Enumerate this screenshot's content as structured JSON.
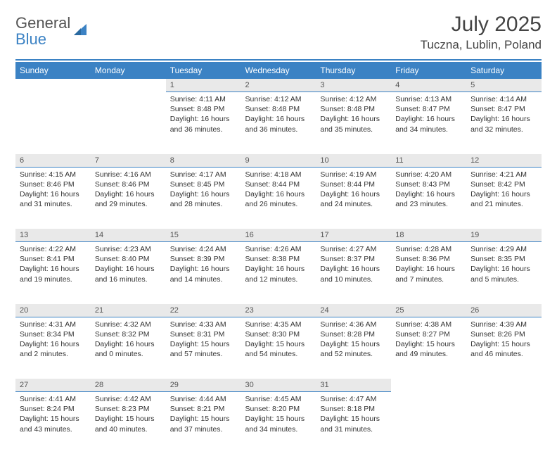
{
  "brand": {
    "part1": "General",
    "part2": "Blue"
  },
  "title": "July 2025",
  "location": "Tuczna, Lublin, Poland",
  "colors": {
    "accent": "#3b82c4",
    "dayHeaderBg": "#e9e9e9",
    "text": "#333333"
  },
  "dayNames": [
    "Sunday",
    "Monday",
    "Tuesday",
    "Wednesday",
    "Thursday",
    "Friday",
    "Saturday"
  ],
  "startOffset": 2,
  "days": [
    {
      "n": 1,
      "sr": "4:11 AM",
      "ss": "8:48 PM",
      "dl": "16 hours and 36 minutes."
    },
    {
      "n": 2,
      "sr": "4:12 AM",
      "ss": "8:48 PM",
      "dl": "16 hours and 36 minutes."
    },
    {
      "n": 3,
      "sr": "4:12 AM",
      "ss": "8:48 PM",
      "dl": "16 hours and 35 minutes."
    },
    {
      "n": 4,
      "sr": "4:13 AM",
      "ss": "8:47 PM",
      "dl": "16 hours and 34 minutes."
    },
    {
      "n": 5,
      "sr": "4:14 AM",
      "ss": "8:47 PM",
      "dl": "16 hours and 32 minutes."
    },
    {
      "n": 6,
      "sr": "4:15 AM",
      "ss": "8:46 PM",
      "dl": "16 hours and 31 minutes."
    },
    {
      "n": 7,
      "sr": "4:16 AM",
      "ss": "8:46 PM",
      "dl": "16 hours and 29 minutes."
    },
    {
      "n": 8,
      "sr": "4:17 AM",
      "ss": "8:45 PM",
      "dl": "16 hours and 28 minutes."
    },
    {
      "n": 9,
      "sr": "4:18 AM",
      "ss": "8:44 PM",
      "dl": "16 hours and 26 minutes."
    },
    {
      "n": 10,
      "sr": "4:19 AM",
      "ss": "8:44 PM",
      "dl": "16 hours and 24 minutes."
    },
    {
      "n": 11,
      "sr": "4:20 AM",
      "ss": "8:43 PM",
      "dl": "16 hours and 23 minutes."
    },
    {
      "n": 12,
      "sr": "4:21 AM",
      "ss": "8:42 PM",
      "dl": "16 hours and 21 minutes."
    },
    {
      "n": 13,
      "sr": "4:22 AM",
      "ss": "8:41 PM",
      "dl": "16 hours and 19 minutes."
    },
    {
      "n": 14,
      "sr": "4:23 AM",
      "ss": "8:40 PM",
      "dl": "16 hours and 16 minutes."
    },
    {
      "n": 15,
      "sr": "4:24 AM",
      "ss": "8:39 PM",
      "dl": "16 hours and 14 minutes."
    },
    {
      "n": 16,
      "sr": "4:26 AM",
      "ss": "8:38 PM",
      "dl": "16 hours and 12 minutes."
    },
    {
      "n": 17,
      "sr": "4:27 AM",
      "ss": "8:37 PM",
      "dl": "16 hours and 10 minutes."
    },
    {
      "n": 18,
      "sr": "4:28 AM",
      "ss": "8:36 PM",
      "dl": "16 hours and 7 minutes."
    },
    {
      "n": 19,
      "sr": "4:29 AM",
      "ss": "8:35 PM",
      "dl": "16 hours and 5 minutes."
    },
    {
      "n": 20,
      "sr": "4:31 AM",
      "ss": "8:34 PM",
      "dl": "16 hours and 2 minutes."
    },
    {
      "n": 21,
      "sr": "4:32 AM",
      "ss": "8:32 PM",
      "dl": "16 hours and 0 minutes."
    },
    {
      "n": 22,
      "sr": "4:33 AM",
      "ss": "8:31 PM",
      "dl": "15 hours and 57 minutes."
    },
    {
      "n": 23,
      "sr": "4:35 AM",
      "ss": "8:30 PM",
      "dl": "15 hours and 54 minutes."
    },
    {
      "n": 24,
      "sr": "4:36 AM",
      "ss": "8:28 PM",
      "dl": "15 hours and 52 minutes."
    },
    {
      "n": 25,
      "sr": "4:38 AM",
      "ss": "8:27 PM",
      "dl": "15 hours and 49 minutes."
    },
    {
      "n": 26,
      "sr": "4:39 AM",
      "ss": "8:26 PM",
      "dl": "15 hours and 46 minutes."
    },
    {
      "n": 27,
      "sr": "4:41 AM",
      "ss": "8:24 PM",
      "dl": "15 hours and 43 minutes."
    },
    {
      "n": 28,
      "sr": "4:42 AM",
      "ss": "8:23 PM",
      "dl": "15 hours and 40 minutes."
    },
    {
      "n": 29,
      "sr": "4:44 AM",
      "ss": "8:21 PM",
      "dl": "15 hours and 37 minutes."
    },
    {
      "n": 30,
      "sr": "4:45 AM",
      "ss": "8:20 PM",
      "dl": "15 hours and 34 minutes."
    },
    {
      "n": 31,
      "sr": "4:47 AM",
      "ss": "8:18 PM",
      "dl": "15 hours and 31 minutes."
    }
  ],
  "labels": {
    "sunrise": "Sunrise:",
    "sunset": "Sunset:",
    "daylight": "Daylight:"
  }
}
